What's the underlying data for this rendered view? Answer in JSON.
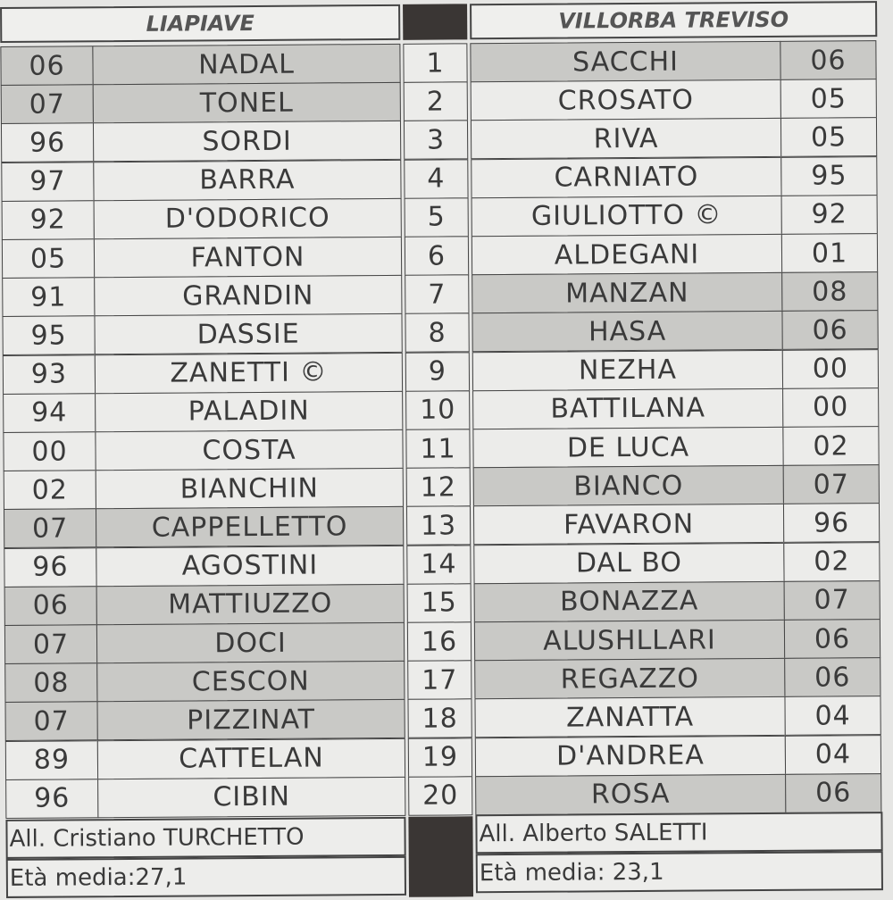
{
  "home": {
    "team": "LIAPIAVE",
    "players": [
      {
        "year": "06",
        "name": "NADAL",
        "highlighted": true
      },
      {
        "year": "07",
        "name": "TONEL",
        "highlighted": true
      },
      {
        "year": "96",
        "name": "SORDI",
        "highlighted": false
      },
      {
        "year": "97",
        "name": "BARRA",
        "highlighted": false
      },
      {
        "year": "92",
        "name": "D'ODORICO",
        "highlighted": false
      },
      {
        "year": "05",
        "name": "FANTON",
        "highlighted": false
      },
      {
        "year": "91",
        "name": "GRANDIN",
        "highlighted": false
      },
      {
        "year": "95",
        "name": "DASSIE",
        "highlighted": false
      },
      {
        "year": "93",
        "name": "ZANETTI ©",
        "highlighted": false
      },
      {
        "year": "94",
        "name": "PALADIN",
        "highlighted": false
      },
      {
        "year": "00",
        "name": "COSTA",
        "highlighted": false
      },
      {
        "year": "02",
        "name": "BIANCHIN",
        "highlighted": false
      },
      {
        "year": "07",
        "name": "CAPPELLETTO",
        "highlighted": true
      },
      {
        "year": "96",
        "name": "AGOSTINI",
        "highlighted": false
      },
      {
        "year": "06",
        "name": "MATTIUZZO",
        "highlighted": true
      },
      {
        "year": "07",
        "name": "DOCI",
        "highlighted": true
      },
      {
        "year": "08",
        "name": "CESCON",
        "highlighted": true
      },
      {
        "year": "07",
        "name": "PIZZINAT",
        "highlighted": true
      },
      {
        "year": "89",
        "name": "CATTELAN",
        "highlighted": false
      },
      {
        "year": "96",
        "name": "CIBIN",
        "highlighted": false
      }
    ],
    "coach": "All. Cristiano TURCHETTO",
    "avg_age": "Età media:27,1"
  },
  "numbers": [
    "1",
    "2",
    "3",
    "4",
    "5",
    "6",
    "7",
    "8",
    "9",
    "10",
    "11",
    "12",
    "13",
    "14",
    "15",
    "16",
    "17",
    "18",
    "19",
    "20"
  ],
  "away": {
    "team": "VILLORBA TREVISO",
    "players": [
      {
        "year": "06",
        "name": "SACCHI",
        "highlighted": true
      },
      {
        "year": "05",
        "name": "CROSATO",
        "highlighted": false
      },
      {
        "year": "05",
        "name": "RIVA",
        "highlighted": false
      },
      {
        "year": "95",
        "name": "CARNIATO",
        "highlighted": false
      },
      {
        "year": "92",
        "name": "GIULIOTTO ©",
        "highlighted": false
      },
      {
        "year": "01",
        "name": "ALDEGANI",
        "highlighted": false
      },
      {
        "year": "08",
        "name": "MANZAN",
        "highlighted": true
      },
      {
        "year": "06",
        "name": "HASA",
        "highlighted": true
      },
      {
        "year": "00",
        "name": "NEZHA",
        "highlighted": false
      },
      {
        "year": "00",
        "name": "BATTILANA",
        "highlighted": false
      },
      {
        "year": "02",
        "name": "DE LUCA",
        "highlighted": false
      },
      {
        "year": "07",
        "name": "BIANCO",
        "highlighted": true
      },
      {
        "year": "96",
        "name": "FAVARON",
        "highlighted": false
      },
      {
        "year": "02",
        "name": "DAL BO",
        "highlighted": false
      },
      {
        "year": "07",
        "name": "BONAZZA",
        "highlighted": true
      },
      {
        "year": "06",
        "name": "ALUSHLLARI",
        "highlighted": true
      },
      {
        "year": "06",
        "name": "REGAZZO",
        "highlighted": true
      },
      {
        "year": "04",
        "name": "ZANATTA",
        "highlighted": false
      },
      {
        "year": "04",
        "name": "D'ANDREA",
        "highlighted": false
      },
      {
        "year": "06",
        "name": "ROSA",
        "highlighted": true
      }
    ],
    "coach": "All. Alberto SALETTI",
    "avg_age": "Età media: 23,1"
  }
}
